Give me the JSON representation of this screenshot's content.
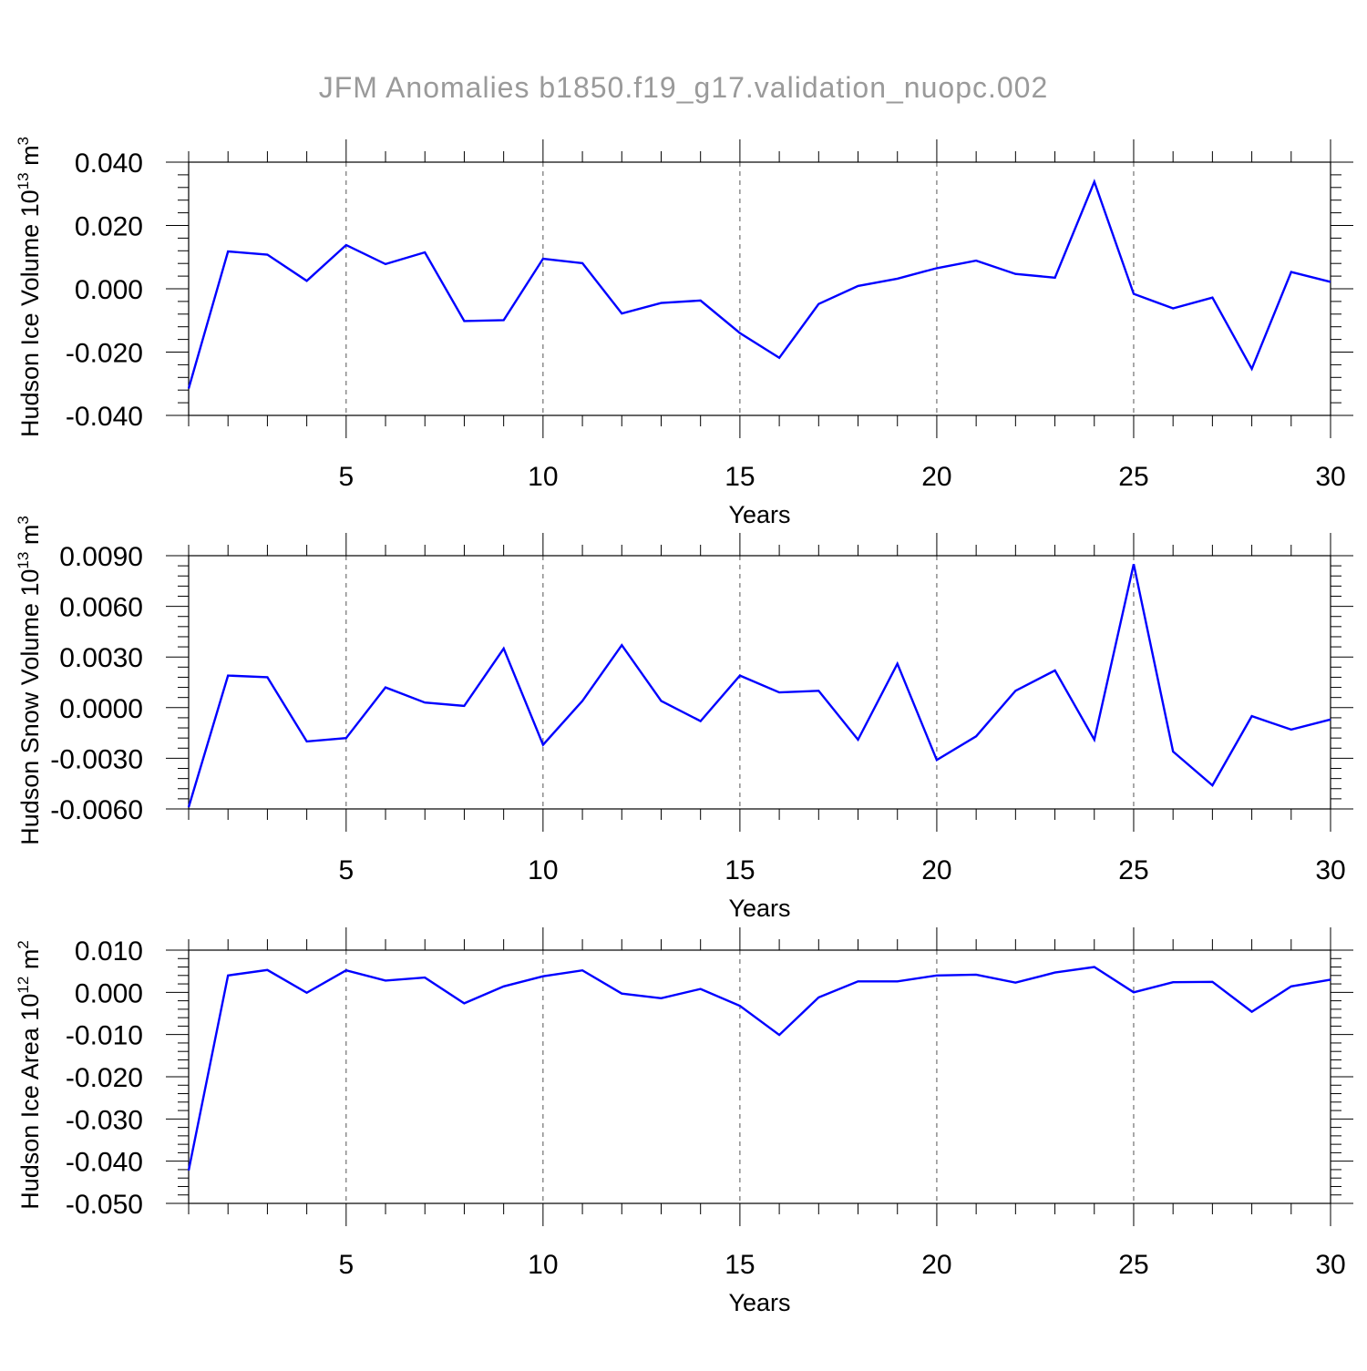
{
  "title": "JFM Anomalies b1850.f19_g17.validation_nuopc.002",
  "colors": {
    "series": "#0000ff",
    "axis": "#000000",
    "title": "#9a9a9a",
    "gridline": "#555555"
  },
  "chart_data": [
    {
      "type": "line",
      "ylabel": {
        "main": "Hudson Ice Volume 10",
        "exp": "13",
        "unit": " m",
        "unit_exp": "3"
      },
      "xlabel": "Years",
      "xlim": [
        1,
        30
      ],
      "ylim": [
        -0.04,
        0.04
      ],
      "xticks": [
        5,
        10,
        15,
        20,
        25,
        30
      ],
      "yticks": [
        0.04,
        0.02,
        0.0,
        -0.02,
        -0.04
      ],
      "ytick_labels": [
        "0.040",
        "0.020",
        "0.000",
        "-0.020",
        "-0.040"
      ],
      "series": [
        {
          "name": "Hudson Ice Volume",
          "x": [
            1,
            2,
            3,
            4,
            5,
            6,
            7,
            8,
            9,
            10,
            11,
            12,
            13,
            14,
            15,
            16,
            17,
            18,
            19,
            20,
            21,
            22,
            23,
            24,
            25,
            26,
            27,
            28,
            29,
            30
          ],
          "values": [
            -0.0315,
            0.0118,
            0.0108,
            0.0025,
            0.0138,
            0.0078,
            0.0115,
            -0.0102,
            -0.0099,
            0.0095,
            0.0081,
            -0.0078,
            -0.0045,
            -0.0037,
            -0.014,
            -0.0218,
            -0.0048,
            0.0009,
            0.0032,
            0.0065,
            0.0089,
            0.0047,
            0.0035,
            0.0338,
            -0.0016,
            -0.0062,
            -0.0028,
            -0.0253,
            0.0053,
            0.0022
          ]
        }
      ]
    },
    {
      "type": "line",
      "ylabel": {
        "main": "Hudson Snow Volume 10",
        "exp": "13",
        "unit": " m",
        "unit_exp": "3"
      },
      "xlabel": "Years",
      "xlim": [
        1,
        30
      ],
      "ylim": [
        -0.006,
        0.009
      ],
      "xticks": [
        5,
        10,
        15,
        20,
        25,
        30
      ],
      "yticks": [
        0.009,
        0.006,
        0.003,
        0.0,
        -0.003,
        -0.006
      ],
      "ytick_labels": [
        "0.0090",
        "0.0060",
        "0.0030",
        "0.0000",
        "-0.0030",
        "-0.0060"
      ],
      "series": [
        {
          "name": "Hudson Snow Volume",
          "x": [
            1,
            2,
            3,
            4,
            5,
            6,
            7,
            8,
            9,
            10,
            11,
            12,
            13,
            14,
            15,
            16,
            17,
            18,
            19,
            20,
            21,
            22,
            23,
            24,
            25,
            26,
            27,
            28,
            29,
            30
          ],
          "values": [
            -0.0059,
            0.0019,
            0.0018,
            -0.002,
            -0.0018,
            0.0012,
            0.0003,
            0.0001,
            0.0035,
            -0.0022,
            0.0004,
            0.0037,
            0.0004,
            -0.0008,
            0.0019,
            0.0009,
            0.001,
            -0.0019,
            0.0026,
            -0.0031,
            -0.0017,
            0.001,
            0.0022,
            -0.0019,
            0.0085,
            -0.0026,
            -0.0046,
            -0.0005,
            -0.0013,
            -0.0007
          ]
        }
      ]
    },
    {
      "type": "line",
      "ylabel": {
        "main": "Hudson Ice Area 10",
        "exp": "12",
        "unit": " m",
        "unit_exp": "2"
      },
      "xlabel": "Years",
      "xlim": [
        1,
        30
      ],
      "ylim": [
        -0.05,
        0.01
      ],
      "xticks": [
        5,
        10,
        15,
        20,
        25,
        30
      ],
      "yticks": [
        0.01,
        0.0,
        -0.01,
        -0.02,
        -0.03,
        -0.04,
        -0.05
      ],
      "ytick_labels": [
        "0.010",
        "0.000",
        "-0.010",
        "-0.020",
        "-0.030",
        "-0.040",
        "-0.050"
      ],
      "series": [
        {
          "name": "Hudson Ice Area",
          "x": [
            1,
            2,
            3,
            4,
            5,
            6,
            7,
            8,
            9,
            10,
            11,
            12,
            13,
            14,
            15,
            16,
            17,
            18,
            19,
            20,
            21,
            22,
            23,
            24,
            25,
            26,
            27,
            28,
            29,
            30
          ],
          "values": [
            -0.0422,
            0.004,
            0.0053,
            -0.0001,
            0.0052,
            0.0028,
            0.0035,
            -0.0026,
            0.0014,
            0.0038,
            0.0052,
            -0.0003,
            -0.0014,
            0.0008,
            -0.0032,
            -0.0101,
            -0.0012,
            0.0026,
            0.0026,
            0.004,
            0.0042,
            0.0023,
            0.0047,
            0.006,
            0.0,
            0.0024,
            0.0025,
            -0.0046,
            0.0014,
            0.003
          ]
        }
      ]
    }
  ]
}
